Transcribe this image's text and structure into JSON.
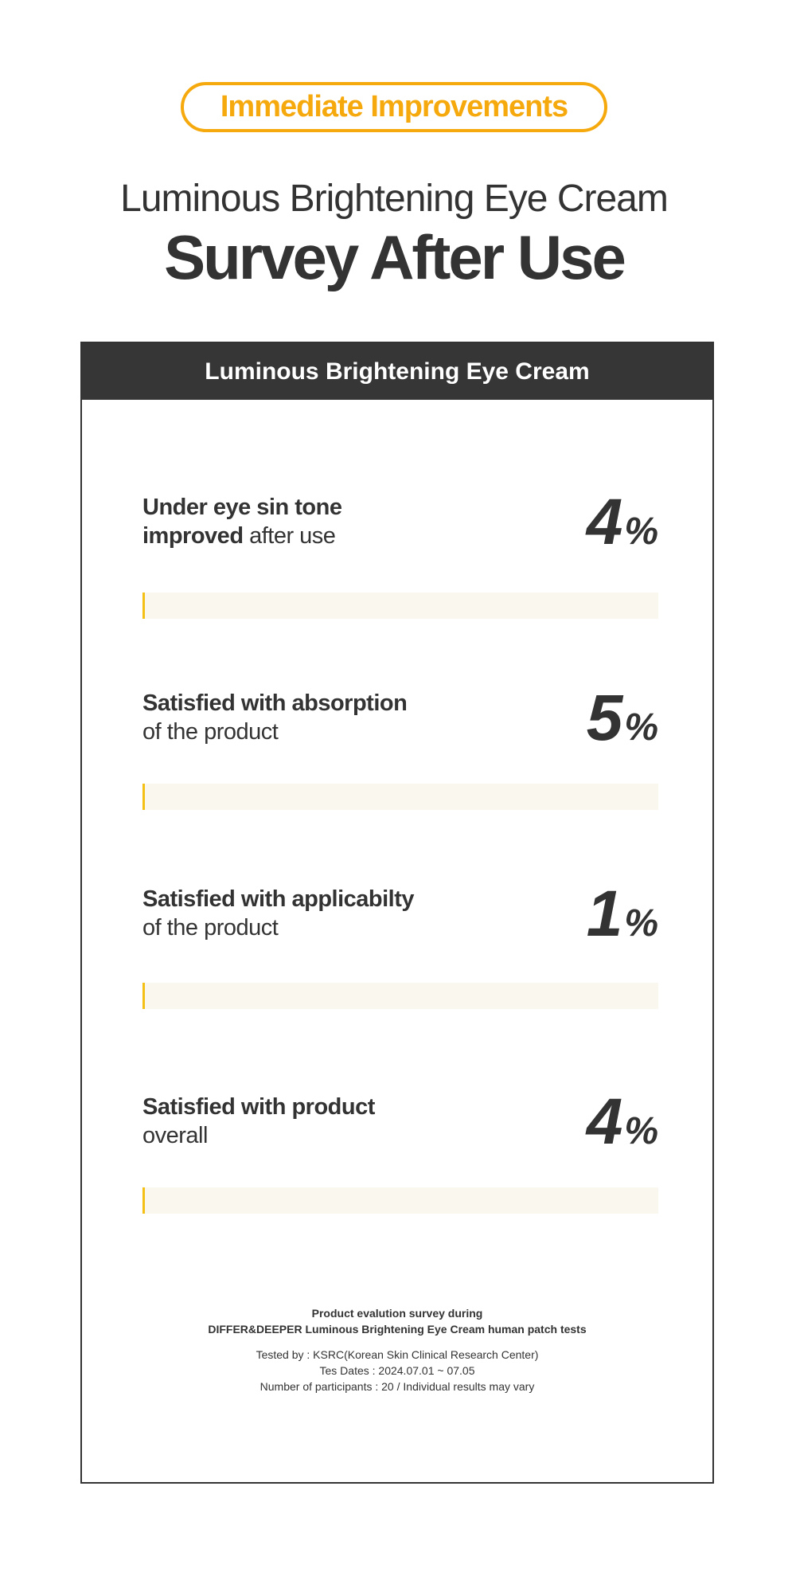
{
  "header": {
    "badge": "Immediate Improvements",
    "subtitle": "Luminous Brightening Eye Cream",
    "title": "Survey After Use"
  },
  "card": {
    "header": "Luminous Brightening Eye Cream",
    "items": [
      {
        "bold": "Under eye sin tone",
        "bold2": "improved",
        "rest": " after use",
        "value": "4",
        "unit": "%",
        "percent": 4
      },
      {
        "bold": "Satisfied with absorption",
        "bold2": "",
        "rest": "of the product",
        "value": "5",
        "unit": "%",
        "percent": 5
      },
      {
        "bold": "Satisfied with applicabilty",
        "bold2": "",
        "rest": "of the product",
        "value": "1",
        "unit": "%",
        "percent": 1
      },
      {
        "bold": "Satisfied with product",
        "bold2": "",
        "rest": "overall",
        "value": "4",
        "unit": "%",
        "percent": 4
      }
    ],
    "footer": {
      "line1": "Product evalution survey during",
      "line2": "DIFFER&DEEPER Luminous Brightening Eye Cream human patch tests",
      "line3": "Tested by : KSRC(Korean Skin Clinical Research Center)",
      "line4": "Tes Dates : 2024.07.01 ~ 07.05",
      "line5": "Number of participants : 20 / Individual results may vary"
    }
  },
  "colors": {
    "accent": "#f5a90d",
    "bar_fill": "#f5c016",
    "bar_track": "#faf7ef",
    "dark": "#363636"
  }
}
